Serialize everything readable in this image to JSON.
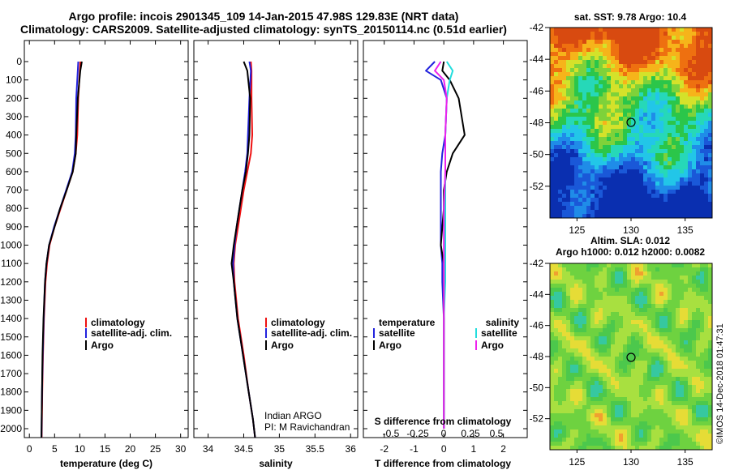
{
  "header": {
    "line1": "Argo profile: incois 2901345_109 14-Jan-2015 47.98S 129.83E (NRT data)",
    "line2": "Climatology: CARS2009. Satellite-adjusted climatology: synTS_20150114.nc (0.51d earlier)"
  },
  "colors": {
    "climatology": "#ee1111",
    "satellite": "#2222dd",
    "argo": "#000000",
    "sat_salinity": "#22dddd",
    "argo_salinity": "#ee22ee"
  },
  "depth_axis": {
    "ticks": [
      "0",
      "100",
      "200",
      "300",
      "400",
      "500",
      "600",
      "700",
      "800",
      "900",
      "1000",
      "1100",
      "1200",
      "1300",
      "1400",
      "1500",
      "1600",
      "1700",
      "1800",
      "1900",
      "2000"
    ]
  },
  "temperature_panel": {
    "xlabel": "temperature (deg C)",
    "ticks": [
      "0",
      "5",
      "10",
      "15",
      "20",
      "25",
      "30"
    ],
    "legend": [
      "climatology",
      "satellite-adj. clim.",
      "Argo"
    ]
  },
  "salinity_panel": {
    "xlabel": "salinity",
    "ticks": [
      "34",
      "34.5",
      "35",
      "35.5",
      "36"
    ],
    "legend": [
      "climatology",
      "satellite-adj. clim.",
      "Argo"
    ],
    "credit_line1": "Indian ARGO",
    "credit_line2": "PI: M Ravichandran"
  },
  "difference_panel": {
    "xlabel": "T difference from climatology",
    "ticks": [
      "-2",
      "-1",
      "0",
      "1",
      "2"
    ],
    "s_title": "S difference from climatology",
    "s_ticks": [
      "-0.5",
      "-0.25",
      "0",
      "0.25",
      "0.5"
    ],
    "legend_temperature_title": "temperature",
    "legend_salinity_title": "salinity",
    "legend_temperature": [
      "satellite",
      "Argo"
    ],
    "legend_salinity": [
      "satellite",
      "Argo"
    ]
  },
  "sst_map": {
    "title": "sat. SST: 9.78 Argo: 10.4",
    "yticks": [
      "-42",
      "-44",
      "-46",
      "-48",
      "-50",
      "-52"
    ],
    "xticks": [
      "125",
      "130",
      "135"
    ]
  },
  "sla_map": {
    "title_line1": "Altim. SLA: 0.012",
    "title_line2": "Argo h1000: 0.012 h2000: 0.0082",
    "yticks": [
      "-42",
      "-44",
      "-46",
      "-48",
      "-50",
      "-52"
    ],
    "xticks": [
      "125",
      "130",
      "135"
    ]
  },
  "stamp": "©IMOS 14-Dec-2018 01:47:31",
  "chart_data": [
    {
      "type": "line",
      "panel": "temperature",
      "xlabel": "temperature (deg C)",
      "ylabel": "",
      "xlim": [
        -1,
        31.5
      ],
      "ylim": [
        2060,
        0
      ],
      "series": [
        {
          "name": "climatology",
          "color": "red",
          "x": [
            10.1,
            10.0,
            9.7,
            9.5,
            9.2,
            8.6,
            7.4,
            6.2,
            5.0,
            4.0,
            3.5,
            3.2,
            2.9,
            2.7,
            2.55,
            2.45
          ],
          "y": [
            0,
            50,
            200,
            400,
            500,
            600,
            700,
            800,
            900,
            1000,
            1100,
            1200,
            1400,
            1600,
            1800,
            2050
          ]
        },
        {
          "name": "satellite-adj. clim.",
          "color": "blue",
          "x": [
            9.7,
            9.6,
            9.3,
            9.2,
            9.0,
            8.5,
            7.3,
            6.1,
            4.9,
            3.9,
            3.4,
            3.1,
            2.85,
            2.65,
            2.5,
            2.4
          ],
          "y": [
            0,
            50,
            200,
            400,
            500,
            600,
            700,
            800,
            900,
            1000,
            1100,
            1200,
            1400,
            1600,
            1800,
            2050
          ]
        },
        {
          "name": "Argo",
          "x": [
            10.4,
            10.1,
            9.6,
            9.3,
            9.2,
            8.6,
            7.4,
            6.1,
            5.0,
            3.9,
            3.4,
            3.1,
            2.8,
            2.6,
            2.5,
            2.4
          ],
          "y": [
            0,
            50,
            200,
            400,
            500,
            600,
            700,
            800,
            900,
            1000,
            1100,
            1200,
            1400,
            1600,
            1800,
            2050
          ]
        }
      ]
    },
    {
      "type": "line",
      "panel": "salinity",
      "xlabel": "salinity",
      "ylabel": "",
      "xlim": [
        33.8,
        36.1
      ],
      "ylim": [
        2060,
        0
      ],
      "series": [
        {
          "name": "climatology",
          "color": "red",
          "x": [
            34.6,
            34.61,
            34.61,
            34.62,
            34.6,
            34.55,
            34.5,
            34.46,
            34.42,
            34.38,
            34.36,
            34.37,
            34.42,
            34.5,
            34.57,
            34.63,
            34.66
          ],
          "y": [
            0,
            50,
            200,
            400,
            500,
            600,
            700,
            800,
            900,
            1000,
            1100,
            1200,
            1400,
            1600,
            1800,
            1950,
            2050
          ]
        },
        {
          "name": "satellite-adj. clim.",
          "color": "blue",
          "x": [
            34.58,
            34.6,
            34.58,
            34.56,
            34.55,
            34.52,
            34.48,
            34.44,
            34.4,
            34.37,
            34.35,
            34.36,
            34.41,
            34.49,
            34.57,
            34.63,
            34.66
          ],
          "y": [
            0,
            50,
            200,
            400,
            500,
            600,
            700,
            800,
            900,
            1000,
            1100,
            1200,
            1400,
            1600,
            1800,
            1950,
            2050
          ]
        },
        {
          "name": "Argo",
          "x": [
            34.5,
            34.55,
            34.59,
            34.58,
            34.56,
            34.53,
            34.48,
            34.44,
            34.4,
            34.36,
            34.33,
            34.36,
            34.41,
            34.49,
            34.57,
            34.63,
            34.66
          ],
          "y": [
            0,
            50,
            200,
            400,
            500,
            600,
            700,
            800,
            900,
            1000,
            1100,
            1200,
            1400,
            1600,
            1800,
            1950,
            2050
          ]
        }
      ]
    },
    {
      "type": "line",
      "panel": "difference",
      "xlabel": "T difference from climatology",
      "ylabel": "",
      "xlim": [
        -2.7,
        2.8
      ],
      "ylim": [
        2060,
        0
      ],
      "series": [
        {
          "name": "temperature satellite",
          "color": "blue",
          "x": [
            -0.3,
            -0.6,
            -0.1,
            0.1,
            0.05,
            -0.05,
            -0.1,
            -0.1,
            -0.1,
            -0.1,
            -0.05,
            -0.05,
            0.0,
            0.0,
            0.0
          ],
          "y": [
            0,
            50,
            100,
            200,
            400,
            500,
            600,
            700,
            800,
            1000,
            1100,
            1200,
            1400,
            1600,
            2000
          ]
        },
        {
          "name": "temperature Argo",
          "color": "black",
          "x": [
            0.0,
            -0.05,
            0.2,
            0.5,
            0.7,
            0.3,
            0.1,
            0.0,
            0.0,
            -0.1,
            0.0,
            0.0,
            0.0,
            0.0,
            0.0
          ],
          "y": [
            0,
            50,
            100,
            200,
            400,
            500,
            600,
            700,
            800,
            1000,
            1100,
            1200,
            1400,
            1600,
            2000
          ]
        },
        {
          "name": "salinity satellite",
          "color": "cyan",
          "x": [
            0.1,
            0.3,
            0.2,
            0.1,
            0.05,
            0.05,
            0.05,
            0.05,
            0.05,
            0.05,
            0.0,
            0.0,
            0.0
          ],
          "y": [
            0,
            50,
            100,
            200,
            400,
            600,
            800,
            1000,
            1100,
            1200,
            1400,
            1600,
            2000
          ]
        },
        {
          "name": "salinity Argo",
          "color": "magenta",
          "x": [
            -0.1,
            -0.3,
            0.0,
            0.1,
            0.05,
            0.05,
            0.0,
            0.0,
            0.0,
            0.0,
            0.0,
            0.0
          ],
          "y": [
            0,
            50,
            100,
            200,
            400,
            600,
            800,
            1000,
            1200,
            1400,
            1600,
            2000
          ]
        }
      ]
    },
    {
      "type": "heatmap",
      "panel": "sst_map",
      "title": "sat. SST: 9.78 Argo: 10.4",
      "xlim": [
        122.5,
        137.5
      ],
      "ylim": [
        -54,
        -42
      ],
      "profile_location": [
        129.83,
        -47.98
      ]
    },
    {
      "type": "heatmap",
      "panel": "sla_map",
      "title": "Altim. SLA: 0.012",
      "xlim": [
        122.5,
        137.5
      ],
      "ylim": [
        -54,
        -42
      ],
      "profile_location": [
        129.83,
        -47.98
      ]
    }
  ]
}
